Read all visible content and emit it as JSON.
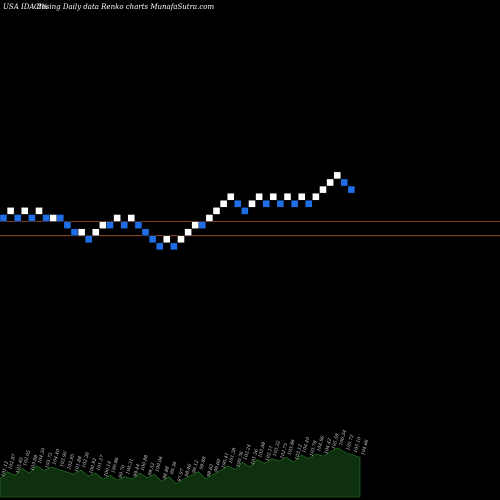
{
  "header": {
    "symbol": "USA IDA 8%",
    "caption": "Closing Daily data  Renko  charts MunafaSutra.com"
  },
  "colors": {
    "background": "#000000",
    "up_brick": "#ffffff",
    "down_brick": "#1f6ee6",
    "reference_line": "#b0552a",
    "volume_fill": "#0f300f",
    "volume_stroke": "#2a7a2a"
  },
  "chart_data": {
    "type": "renko",
    "bricks": [
      {
        "level": 0,
        "dir": "down"
      },
      {
        "level": 1,
        "dir": "up"
      },
      {
        "level": 0,
        "dir": "down"
      },
      {
        "level": 1,
        "dir": "up"
      },
      {
        "level": 0,
        "dir": "down"
      },
      {
        "level": 1,
        "dir": "up"
      },
      {
        "level": 0,
        "dir": "down"
      },
      {
        "level": 0,
        "dir": "up"
      },
      {
        "level": 0,
        "dir": "down"
      },
      {
        "level": -1,
        "dir": "down"
      },
      {
        "level": -2,
        "dir": "down"
      },
      {
        "level": -2,
        "dir": "up"
      },
      {
        "level": -3,
        "dir": "down"
      },
      {
        "level": -2,
        "dir": "up"
      },
      {
        "level": -1,
        "dir": "up"
      },
      {
        "level": -1,
        "dir": "down"
      },
      {
        "level": 0,
        "dir": "up"
      },
      {
        "level": -1,
        "dir": "down"
      },
      {
        "level": 0,
        "dir": "up"
      },
      {
        "level": -1,
        "dir": "down"
      },
      {
        "level": -2,
        "dir": "down"
      },
      {
        "level": -3,
        "dir": "down"
      },
      {
        "level": -4,
        "dir": "down"
      },
      {
        "level": -3,
        "dir": "up"
      },
      {
        "level": -4,
        "dir": "down"
      },
      {
        "level": -3,
        "dir": "up"
      },
      {
        "level": -2,
        "dir": "up"
      },
      {
        "level": -1,
        "dir": "up"
      },
      {
        "level": -1,
        "dir": "down"
      },
      {
        "level": 0,
        "dir": "up"
      },
      {
        "level": 1,
        "dir": "up"
      },
      {
        "level": 2,
        "dir": "up"
      },
      {
        "level": 3,
        "dir": "up"
      },
      {
        "level": 2,
        "dir": "down"
      },
      {
        "level": 1,
        "dir": "down"
      },
      {
        "level": 2,
        "dir": "up"
      },
      {
        "level": 3,
        "dir": "up"
      },
      {
        "level": 2,
        "dir": "down"
      },
      {
        "level": 3,
        "dir": "up"
      },
      {
        "level": 2,
        "dir": "down"
      },
      {
        "level": 3,
        "dir": "up"
      },
      {
        "level": 2,
        "dir": "down"
      },
      {
        "level": 3,
        "dir": "up"
      },
      {
        "level": 2,
        "dir": "down"
      },
      {
        "level": 3,
        "dir": "up"
      },
      {
        "level": 4,
        "dir": "up"
      },
      {
        "level": 5,
        "dir": "up"
      },
      {
        "level": 6,
        "dir": "up"
      },
      {
        "level": 5,
        "dir": "down"
      },
      {
        "level": 4,
        "dir": "down"
      }
    ],
    "reference_lines": [
      0,
      -2
    ],
    "volume": [
      0.3,
      0.42,
      0.36,
      0.48,
      0.4,
      0.52,
      0.44,
      0.5,
      0.46,
      0.42,
      0.38,
      0.45,
      0.35,
      0.4,
      0.3,
      0.36,
      0.28,
      0.34,
      0.3,
      0.4,
      0.32,
      0.38,
      0.26,
      0.34,
      0.22,
      0.3,
      0.36,
      0.42,
      0.3,
      0.38,
      0.44,
      0.52,
      0.46,
      0.58,
      0.5,
      0.62,
      0.56,
      0.64,
      0.6,
      0.66,
      0.58,
      0.7,
      0.64,
      0.72,
      0.68,
      0.76,
      0.82,
      0.74,
      0.7,
      0.66
    ],
    "volume_labels": [
      "101.12",
      "102.87",
      "103.40",
      "102.05",
      "103.88",
      "104.20",
      "103.75",
      "104.40",
      "103.90",
      "102.95",
      "101.88",
      "102.36",
      "100.92",
      "101.57",
      "100.14",
      "100.86",
      "99.70",
      "100.31",
      "99.44",
      "100.88",
      "99.52",
      "100.06",
      "98.88",
      "99.36",
      "97.97",
      "98.46",
      "99.12",
      "99.88",
      "98.62",
      "99.60",
      "100.41",
      "101.38",
      "100.76",
      "102.24",
      "101.56",
      "102.88",
      "102.11",
      "103.32",
      "102.75",
      "103.86",
      "103.12",
      "104.40",
      "103.78",
      "104.96",
      "104.42",
      "105.58",
      "106.34",
      "105.72",
      "105.10",
      "104.66"
    ]
  }
}
